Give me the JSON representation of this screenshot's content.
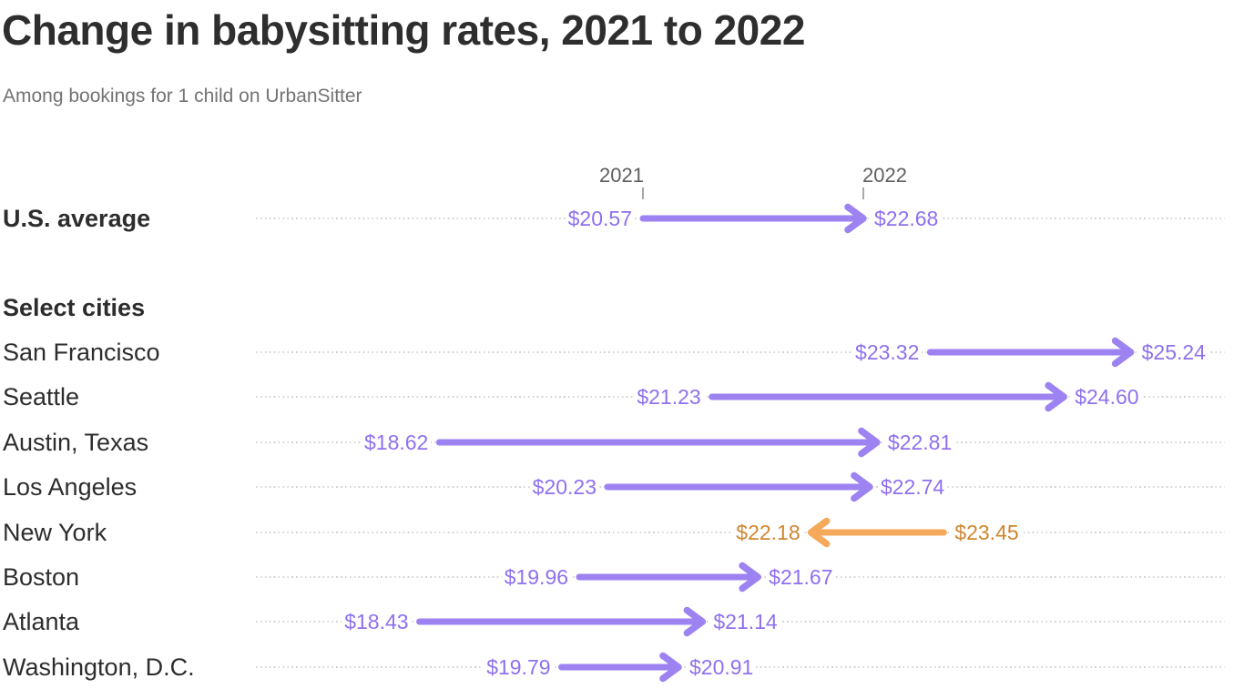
{
  "header": {
    "title": "Change in babysitting rates, 2021 to 2022",
    "subtitle": "Among bookings for 1 child on UrbanSitter"
  },
  "chart_data": {
    "type": "arrow",
    "title": "Change in babysitting rates, 2021 to 2022",
    "subtitle": "Among bookings for 1 child on UrbanSitter",
    "value_prefix": "$",
    "column_labels": [
      "2021",
      "2022"
    ],
    "average_row": {
      "label": "U.S. average",
      "v2021": 20.57,
      "v2022": 22.68
    },
    "section_label": "Select cities",
    "cities": [
      {
        "label": "San Francisco",
        "v2021": 23.32,
        "v2022": 25.24
      },
      {
        "label": "Seattle",
        "v2021": 21.23,
        "v2022": 24.6
      },
      {
        "label": "Austin, Texas",
        "v2021": 18.62,
        "v2022": 22.81
      },
      {
        "label": "Los Angeles",
        "v2021": 20.23,
        "v2022": 22.74
      },
      {
        "label": "New York",
        "v2021": 23.45,
        "v2022": 22.18
      },
      {
        "label": "Boston",
        "v2021": 19.96,
        "v2022": 21.67
      },
      {
        "label": "Atlanta",
        "v2021": 18.43,
        "v2022": 21.14
      },
      {
        "label": "Washington, D.C.",
        "v2021": 19.79,
        "v2022": 20.91
      }
    ],
    "colors": {
      "increase_line": "#9d82f2",
      "increase_text": "#8f70ee",
      "decrease_line": "#f5a95b",
      "decrease_text": "#d0862f",
      "row_label": "#2d2d2d",
      "axis_text": "#5f5f5f",
      "dotted_line": "#d4d4d4"
    },
    "legend_semantics": {
      "increase": "purple arrow pointing right",
      "decrease": "orange arrow pointing left"
    },
    "axis": {
      "tick_labels": [
        "2021",
        "2022"
      ],
      "tick_anchor_values": [
        20.57,
        22.68
      ],
      "grid": "dotted row leaders"
    }
  }
}
